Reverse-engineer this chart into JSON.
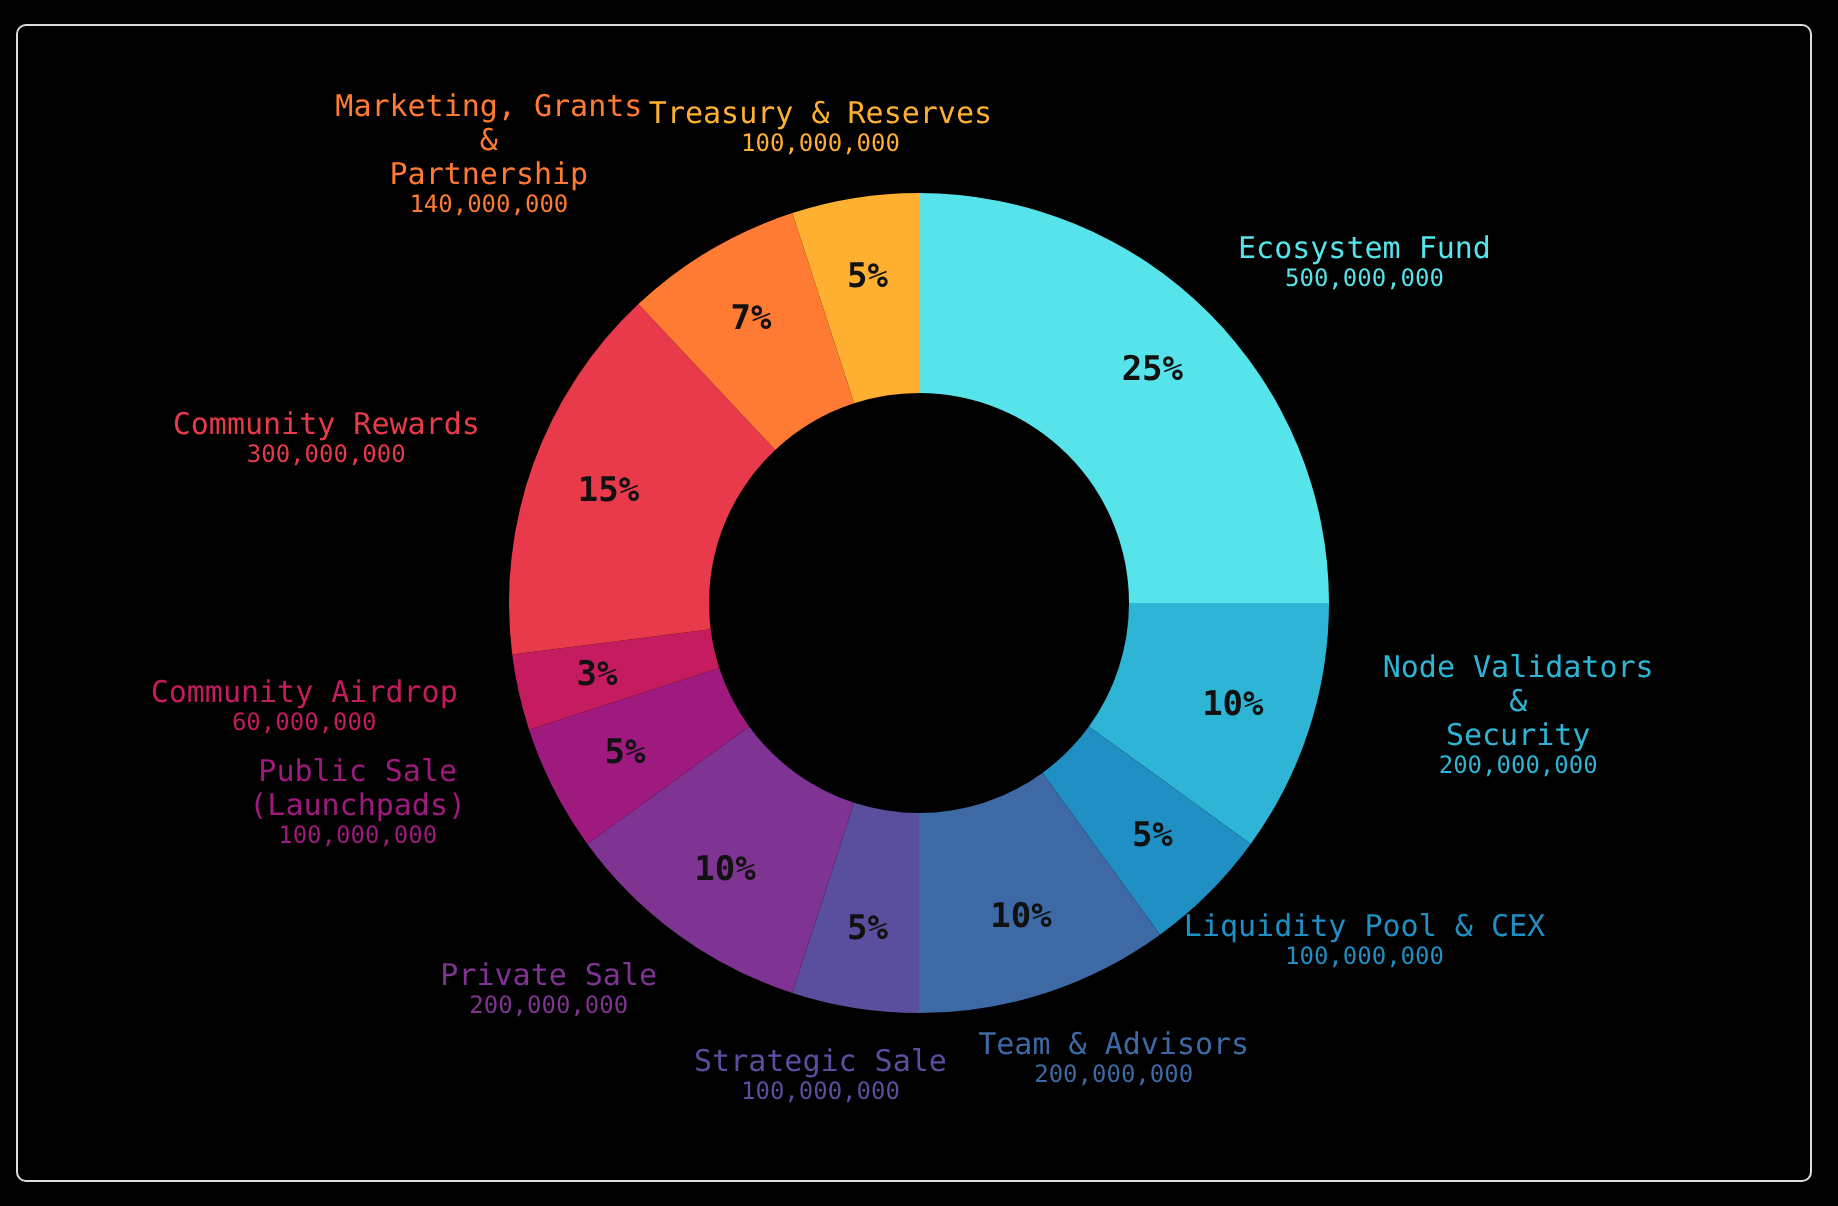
{
  "chart_data": {
    "type": "donut",
    "categories": [
      "Ecosystem Fund\n500,000,000",
      "Node Validators\n&\nSecurity\n200,000,000",
      "Liquidity Pool & CEX\n100,000,000",
      "Team & Advisors\n200,000,000",
      "Strategic Sale\n100,000,000",
      "Private Sale\n200,000,000",
      "Public Sale\n(Launchpads)\n100,000,000",
      "Community Airdrop\n60,000,000",
      "Community Rewards\n300,000,000",
      "Marketing, Grants\n&\nPartnership\n140,000,000",
      "Treasury & Reserves\n100,000,000"
    ],
    "values": [
      25,
      10,
      5,
      10,
      5,
      10,
      5,
      3,
      15,
      7,
      5
    ],
    "value_labels": [
      "25%",
      "10%",
      "5%",
      "10%",
      "5%",
      "10%",
      "5%",
      "3%",
      "15%",
      "7%",
      "5%"
    ],
    "colors": [
      "#56e3ea",
      "#2eb5d6",
      "#1f8fc4",
      "#3d6aa5",
      "#5a4f9e",
      "#7f3393",
      "#9e1a7e",
      "#c41c5e",
      "#e83a4a",
      "#ff7a33",
      "#ffb030"
    ]
  }
}
